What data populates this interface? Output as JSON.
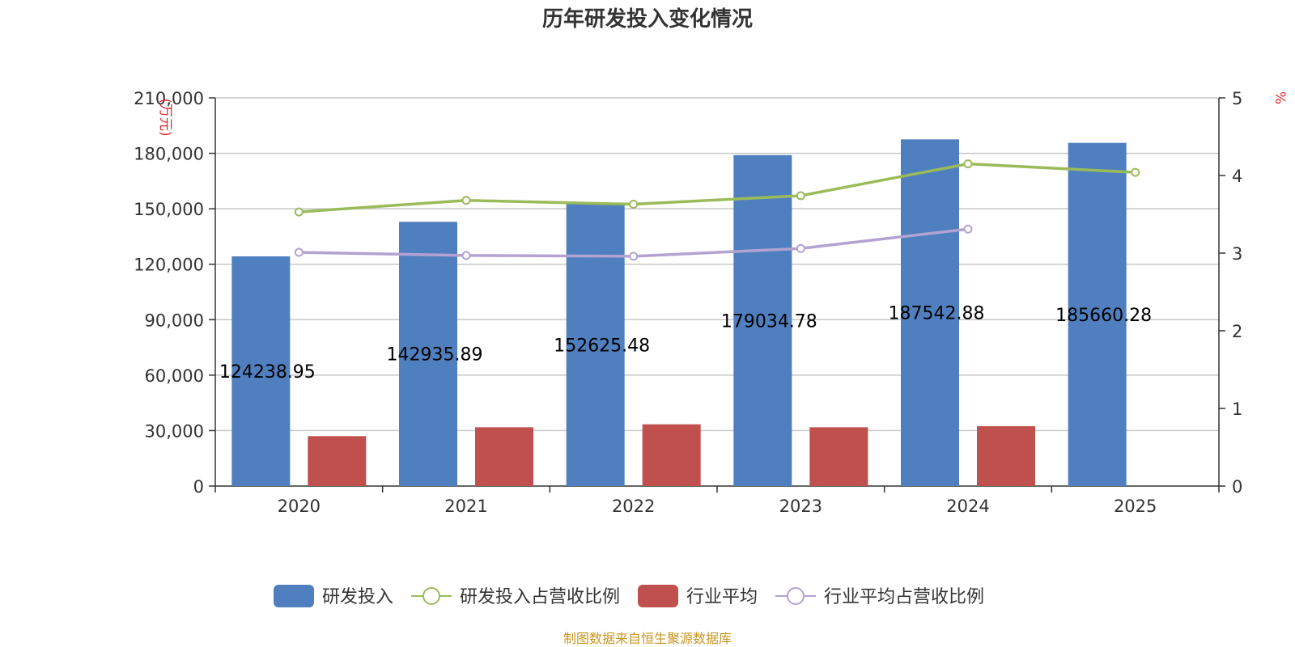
{
  "chart_data": {
    "type": "bar",
    "title": "历年研发投入变化情况",
    "categories": [
      "2020",
      "2021",
      "2022",
      "2023",
      "2024",
      "2025"
    ],
    "ylabel_left": "(万元)",
    "ylabel_right": "%",
    "ylim_left": [
      0,
      210000
    ],
    "ylim_right": [
      0,
      5
    ],
    "yticks_left": [
      "0",
      "30,000",
      "60,000",
      "90,000",
      "120,000",
      "150,000",
      "180,000",
      "210,000"
    ],
    "yticks_right": [
      "0",
      "1",
      "2",
      "3",
      "4",
      "5"
    ],
    "grid": true,
    "legend_position": "bottom",
    "series": [
      {
        "name": "研发投入",
        "kind": "bar",
        "axis": "left",
        "color": "#4f7fbf",
        "values": [
          124238.95,
          142935.89,
          152625.48,
          179034.78,
          187542.88,
          185660.28
        ],
        "labels": [
          "124238.95",
          "142935.89",
          "152625.48",
          "179034.78",
          "187542.88",
          "185660.28"
        ]
      },
      {
        "name": "研发投入占营收比例",
        "kind": "line",
        "axis": "right",
        "color": "#9bbb59",
        "values": [
          3.53,
          3.68,
          3.63,
          3.74,
          4.15,
          4.04
        ]
      },
      {
        "name": "行业平均",
        "kind": "bar",
        "axis": "left",
        "color": "#c0504d",
        "values": [
          27000,
          31800,
          33400,
          31800,
          32400,
          null
        ]
      },
      {
        "name": "行业平均占营收比例",
        "kind": "line",
        "axis": "right",
        "color": "#b3a2d2",
        "values": [
          3.01,
          2.97,
          2.96,
          3.06,
          3.31,
          null
        ]
      }
    ]
  },
  "source_text": "制图数据来自恒生聚源数据库"
}
